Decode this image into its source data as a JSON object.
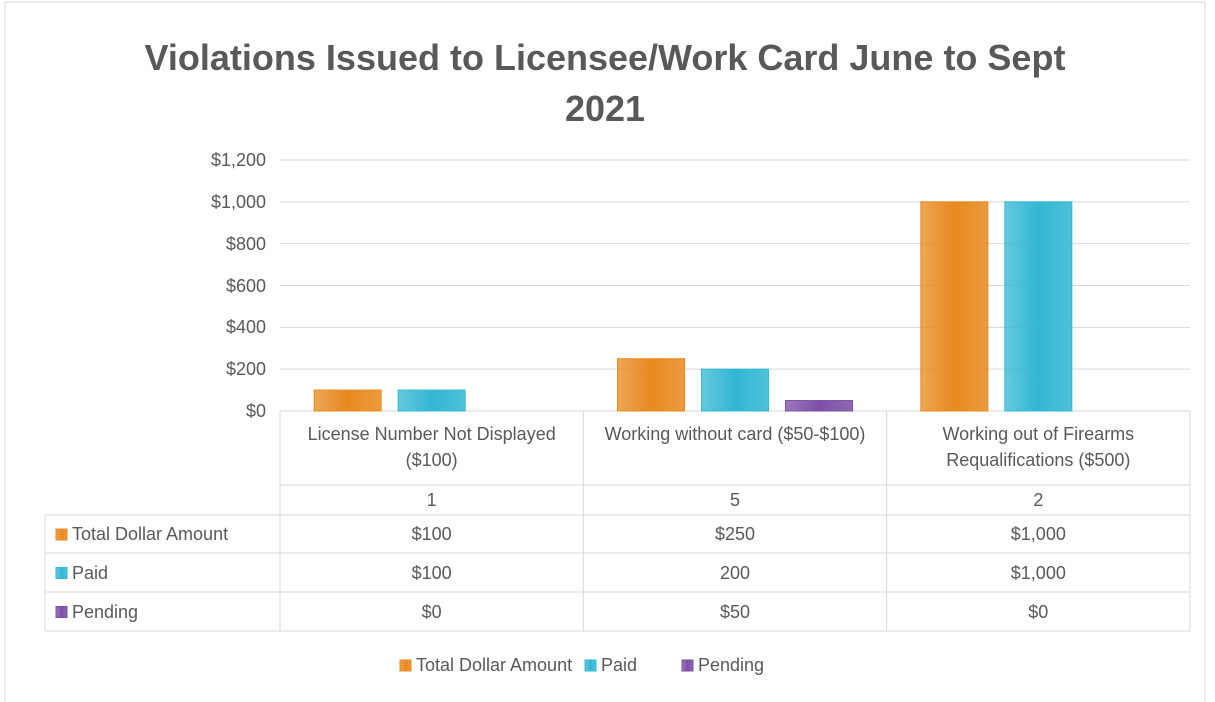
{
  "chart_data": {
    "type": "bar",
    "title": "Violations Issued to Licensee/Work Card June to Sept 2021",
    "categories": [
      "License Number Not Displayed ($100)",
      "Working without card ($50-$100)",
      "Working out of Firearms Requalifications ($500)"
    ],
    "sub_categories": [
      "1",
      "5",
      "2"
    ],
    "series": [
      {
        "name": "Total Dollar Amount",
        "color": "#e8891e",
        "values": [
          100,
          250,
          1000
        ],
        "value_labels": [
          "$100",
          "$250",
          "$1,000"
        ]
      },
      {
        "name": "Paid",
        "color": "#31b7d3",
        "values": [
          100,
          200,
          1000
        ],
        "value_labels": [
          "$100",
          "200",
          "$1,000"
        ]
      },
      {
        "name": "Pending",
        "color": "#7b4fa6",
        "values": [
          0,
          50,
          0
        ],
        "value_labels": [
          "$0",
          "$50",
          "$0"
        ]
      }
    ],
    "ylim": [
      0,
      1200
    ],
    "yticks": [
      {
        "value": 0,
        "label": "$0"
      },
      {
        "value": 200,
        "label": "$200"
      },
      {
        "value": 400,
        "label": "$400"
      },
      {
        "value": 600,
        "label": "$600"
      },
      {
        "value": 800,
        "label": "$800"
      },
      {
        "value": 1000,
        "label": "$1,000"
      },
      {
        "value": 1200,
        "label": "$1,200"
      }
    ],
    "grid": true,
    "legend": "bottom"
  }
}
